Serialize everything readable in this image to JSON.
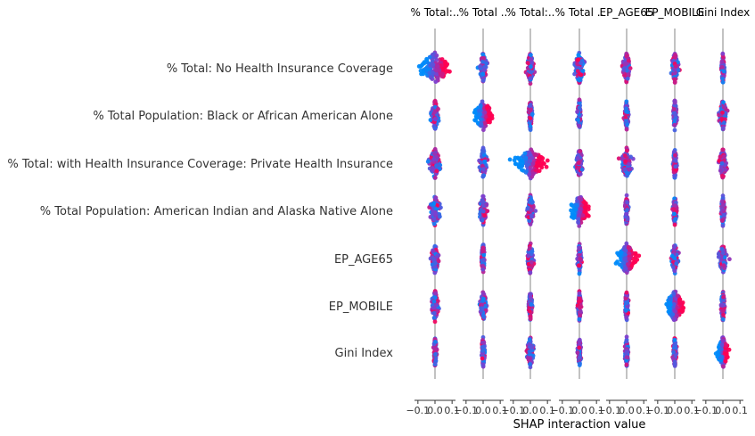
{
  "chart_data": {
    "type": "scatter",
    "subtype": "shap-interaction-beeswarm-matrix",
    "features": [
      "% Total: No Health Insurance Coverage",
      "% Total Population: Black or African American Alone",
      "% Total: with Health Insurance Coverage: Private Health Insurance",
      "% Total Population: American Indian and Alaska Native Alone",
      "EP_AGE65",
      "EP_MOBILE",
      "Gini Index"
    ],
    "column_titles": [
      "% Total:..",
      "% Total ..",
      "% Total:..",
      "% Total ..",
      "EP_AGE65",
      "EP_MOBILE",
      "Gini Index"
    ],
    "x_tick_labels": [
      "−0.1",
      "0.0",
      "0.1"
    ],
    "x_ticks": [
      -0.1,
      0.0,
      0.1
    ],
    "xlim": [
      -0.12,
      0.12
    ],
    "xlabel": "SHAP interaction value",
    "colors": {
      "high": "#ff0052",
      "low": "#008bfb",
      "mid": "#7d3fce",
      "zero_line": "#999999",
      "axis": "#333333"
    },
    "spread": [
      [
        0.09,
        0.02,
        0.02,
        0.03,
        0.02,
        0.02,
        0.01
      ],
      [
        0.02,
        0.05,
        0.01,
        0.01,
        0.01,
        0.01,
        0.02
      ],
      [
        0.03,
        0.02,
        0.08,
        0.02,
        0.03,
        0.01,
        0.02
      ],
      [
        0.03,
        0.02,
        0.02,
        0.05,
        0.01,
        0.01,
        0.01
      ],
      [
        0.02,
        0.01,
        0.02,
        0.01,
        0.05,
        0.02,
        0.02
      ],
      [
        0.02,
        0.02,
        0.01,
        0.01,
        0.01,
        0.05,
        0.01
      ],
      [
        0.01,
        0.01,
        0.02,
        0.01,
        0.01,
        0.01,
        0.03
      ]
    ]
  }
}
